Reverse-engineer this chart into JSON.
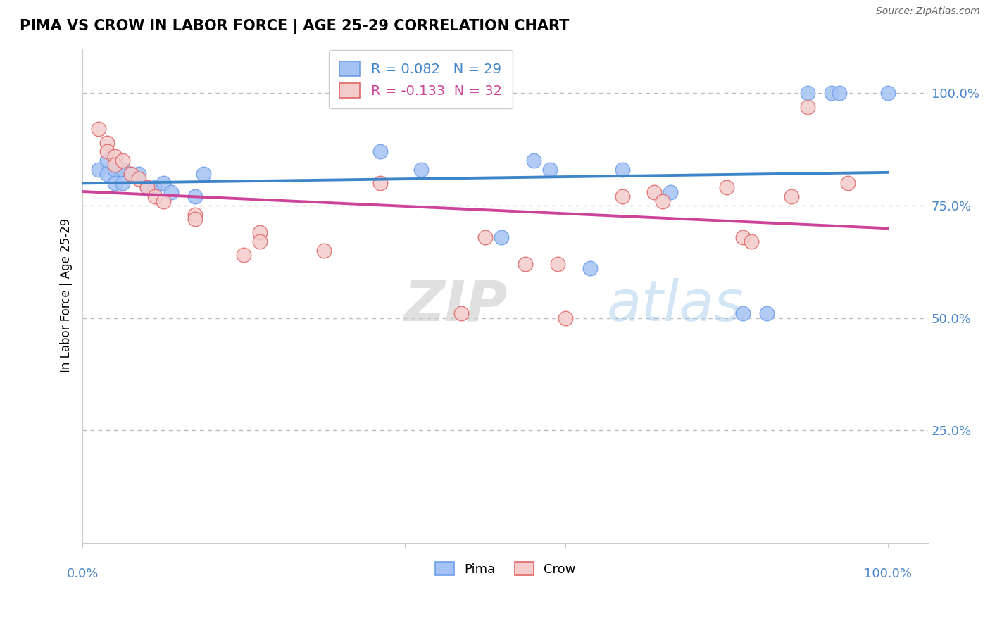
{
  "title": "PIMA VS CROW IN LABOR FORCE | AGE 25-29 CORRELATION CHART",
  "source": "Source: ZipAtlas.com",
  "ylabel": "In Labor Force | Age 25-29",
  "watermark_zip": "ZIP",
  "watermark_atlas": "atlas",
  "pima_R": 0.082,
  "pima_N": 29,
  "crow_R": -0.133,
  "crow_N": 32,
  "blue_fill": "#a4c2f4",
  "blue_edge": "#6d9eeb",
  "pink_fill": "#f4cccc",
  "pink_edge": "#e06666",
  "blue_line_color": "#3d85c8",
  "pink_line_color": "#cc4499",
  "axis_label_color": "#4a86c8",
  "pima_x": [
    0.02,
    0.03,
    0.03,
    0.04,
    0.04,
    0.05,
    0.05,
    0.06,
    0.07,
    0.08,
    0.09,
    0.1,
    0.11,
    0.14,
    0.15,
    0.37,
    0.42,
    0.52,
    0.56,
    0.58,
    0.63,
    0.67,
    0.73,
    0.82,
    0.85,
    0.9,
    0.93,
    0.94,
    1.0
  ],
  "pima_y": [
    0.83,
    0.85,
    0.82,
    0.83,
    0.8,
    0.83,
    0.8,
    0.82,
    0.82,
    0.79,
    0.79,
    0.8,
    0.78,
    0.77,
    0.82,
    0.87,
    0.83,
    0.68,
    0.85,
    0.83,
    0.61,
    0.83,
    0.78,
    0.51,
    0.51,
    1.0,
    1.0,
    1.0,
    1.0
  ],
  "crow_x": [
    0.02,
    0.03,
    0.03,
    0.04,
    0.04,
    0.05,
    0.06,
    0.07,
    0.08,
    0.09,
    0.1,
    0.14,
    0.14,
    0.22,
    0.22,
    0.37,
    0.5,
    0.55,
    0.59,
    0.67,
    0.71,
    0.72,
    0.8,
    0.82,
    0.83,
    0.88,
    0.9,
    0.95,
    0.6,
    0.47,
    0.2,
    0.3
  ],
  "crow_y": [
    0.92,
    0.89,
    0.87,
    0.86,
    0.84,
    0.85,
    0.82,
    0.81,
    0.79,
    0.77,
    0.76,
    0.73,
    0.72,
    0.69,
    0.67,
    0.8,
    0.68,
    0.62,
    0.62,
    0.77,
    0.78,
    0.76,
    0.79,
    0.68,
    0.67,
    0.77,
    0.97,
    0.8,
    0.5,
    0.51,
    0.64,
    0.65
  ],
  "xlim": [
    0.0,
    1.05
  ],
  "ylim": [
    0.0,
    1.1
  ],
  "ytick_vals": [
    0.25,
    0.5,
    0.75,
    1.0
  ],
  "ytick_labels": [
    "25.0%",
    "50.0%",
    "75.0%",
    "100.0%"
  ],
  "title_fontsize": 15,
  "tick_fontsize": 13
}
